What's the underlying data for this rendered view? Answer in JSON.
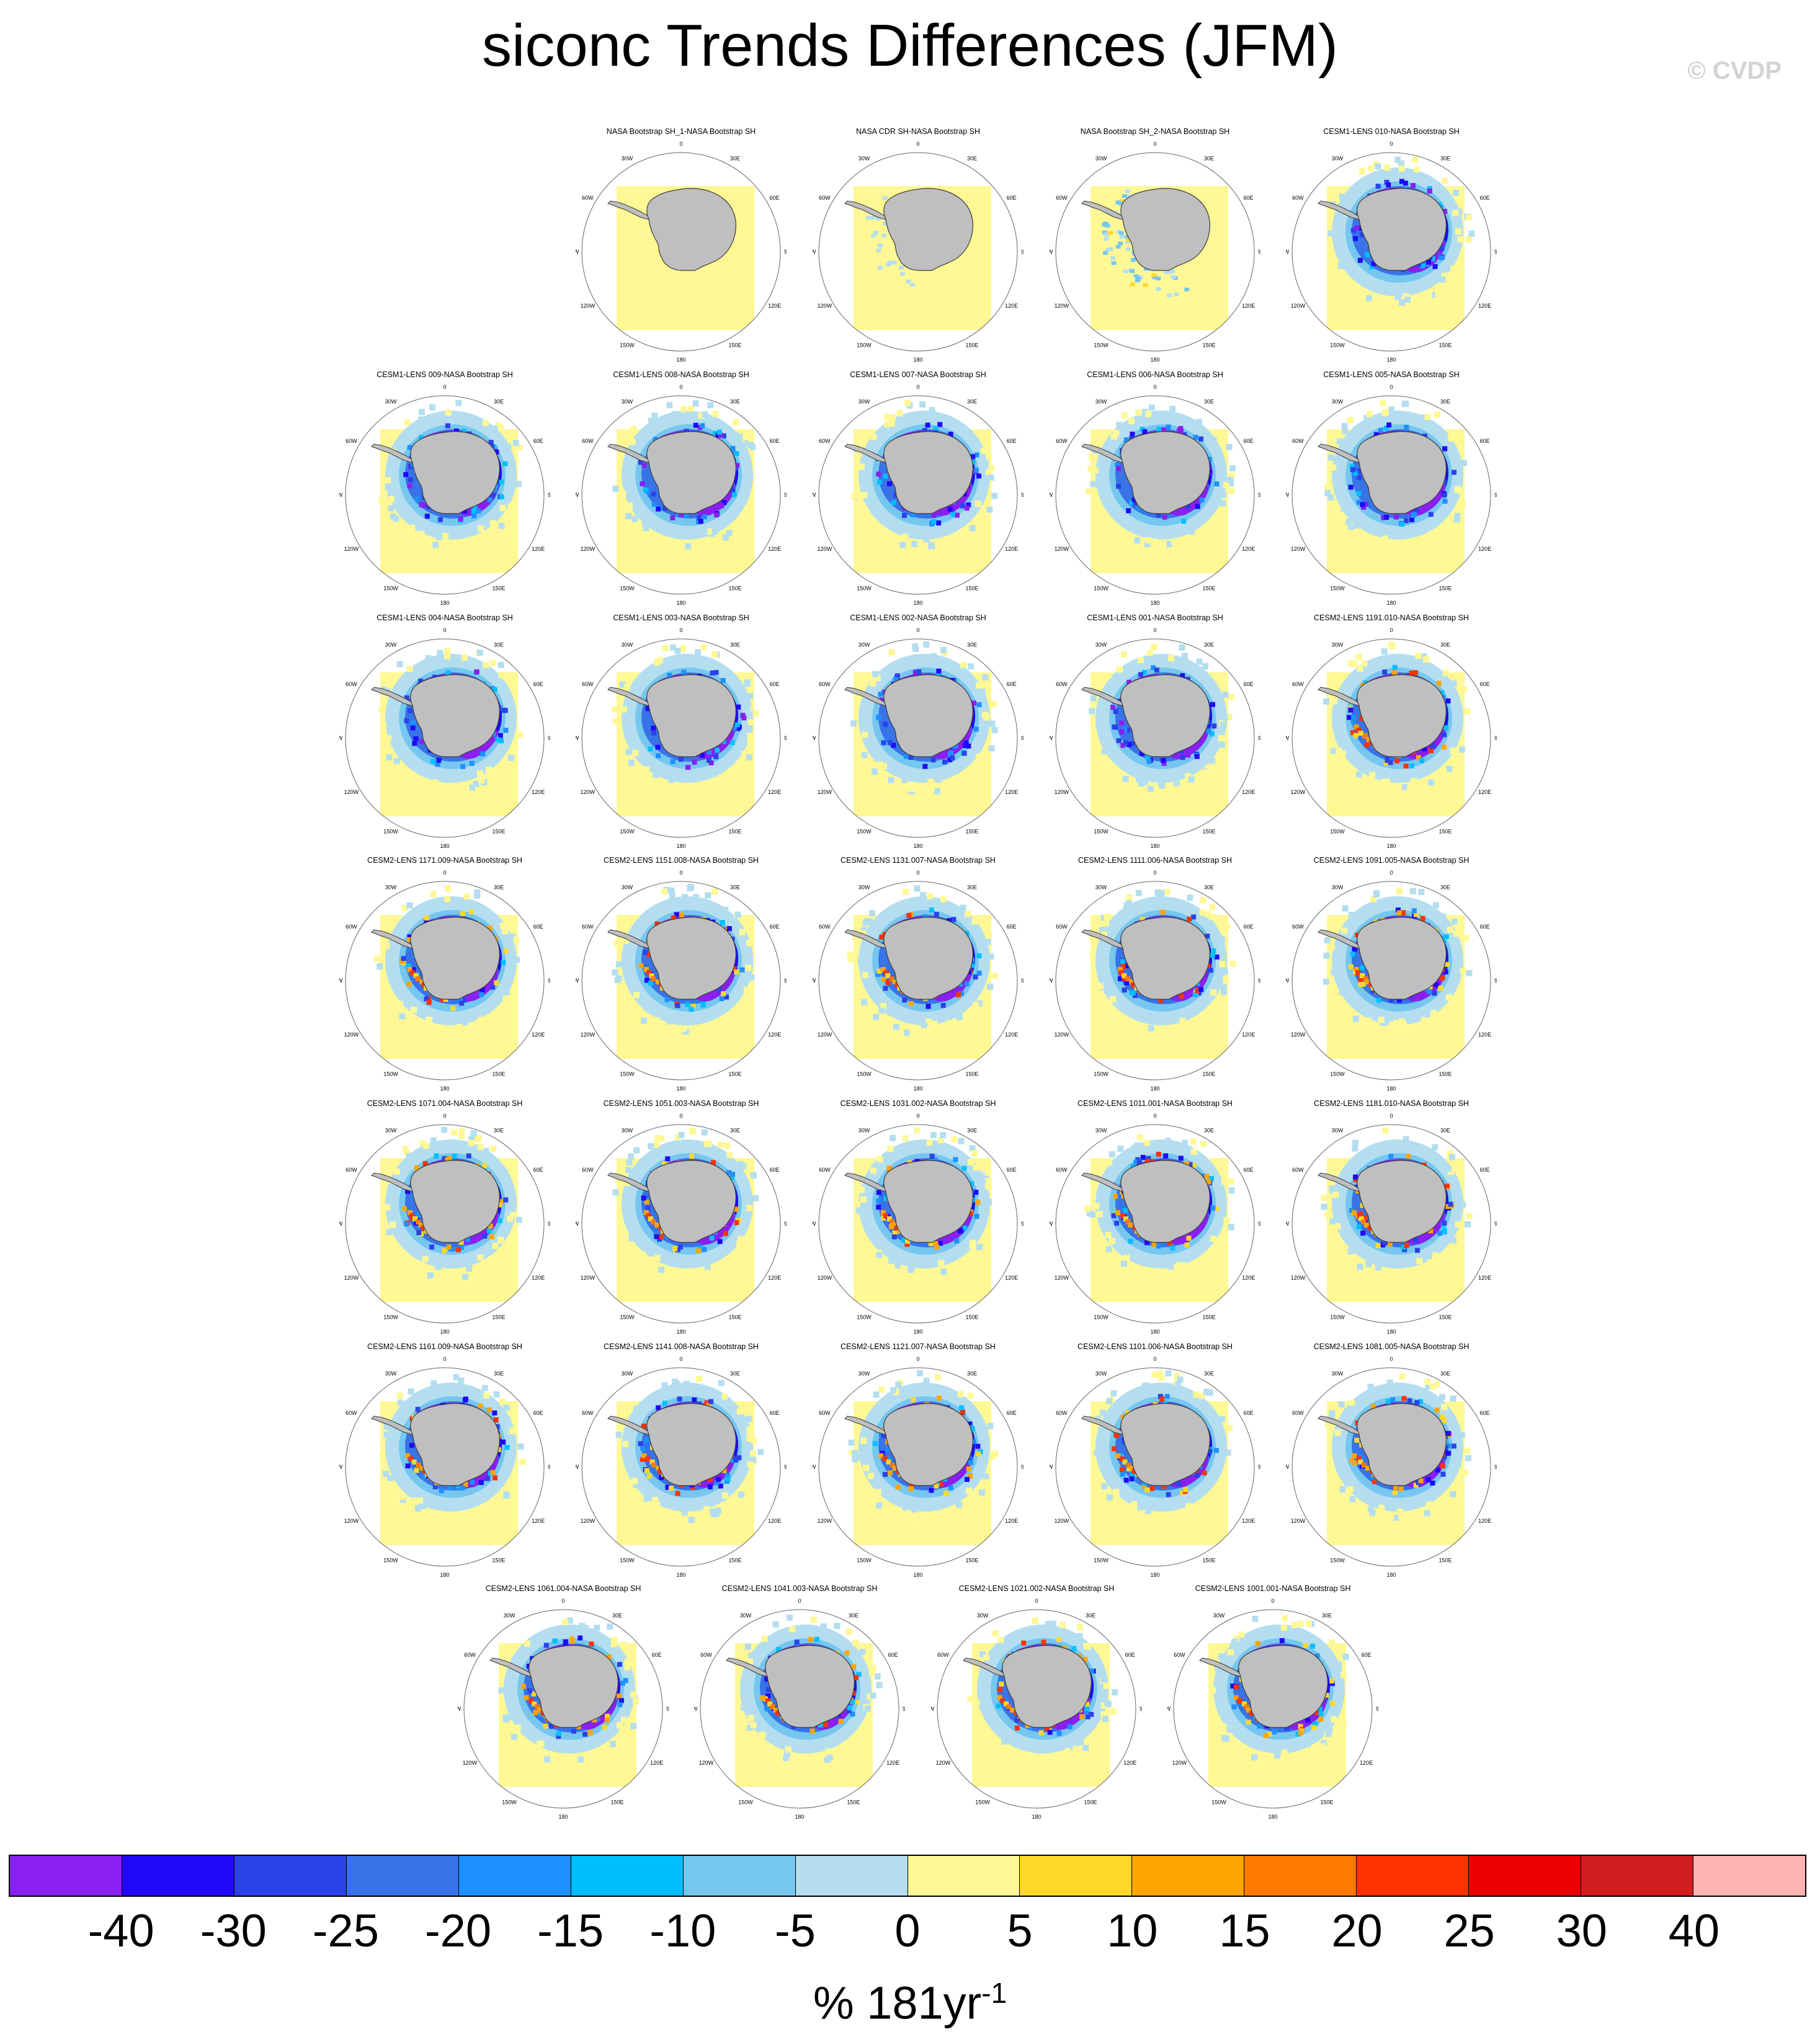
{
  "title": "siconc Trends Differences (JFM)",
  "copyright": "© CVDP",
  "panel_direction_labels": [
    "0",
    "30E",
    "60E",
    "90E",
    "120E",
    "150E",
    "180",
    "150W",
    "120W",
    "90W",
    "60W",
    "30W"
  ],
  "panels": [
    {
      "title": "NASA Bootstrap SH_1-NASA Bootstrap SH",
      "pattern": "none"
    },
    {
      "title": "NASA CDR SH-NASA Bootstrap SH",
      "pattern": "trace"
    },
    {
      "title": "NASA Bootstrap SH_2-NASA Bootstrap SH",
      "pattern": "scatter"
    },
    {
      "title": "CESM1-LENS 010-NASA Bootstrap SH",
      "pattern": "cesm1"
    },
    {
      "title": "CESM1-LENS 009-NASA Bootstrap SH",
      "pattern": "cesm1"
    },
    {
      "title": "CESM1-LENS 008-NASA Bootstrap SH",
      "pattern": "cesm1"
    },
    {
      "title": "CESM1-LENS 007-NASA Bootstrap SH",
      "pattern": "cesm1"
    },
    {
      "title": "CESM1-LENS 006-NASA Bootstrap SH",
      "pattern": "cesm1"
    },
    {
      "title": "CESM1-LENS 005-NASA Bootstrap SH",
      "pattern": "cesm1"
    },
    {
      "title": "CESM1-LENS 004-NASA Bootstrap SH",
      "pattern": "cesm1"
    },
    {
      "title": "CESM1-LENS 003-NASA Bootstrap SH",
      "pattern": "cesm1"
    },
    {
      "title": "CESM1-LENS 002-NASA Bootstrap SH",
      "pattern": "cesm1"
    },
    {
      "title": "CESM1-LENS 001-NASA Bootstrap SH",
      "pattern": "cesm1"
    },
    {
      "title": "CESM2-LENS 1191.010-NASA Bootstrap SH",
      "pattern": "cesm2"
    },
    {
      "title": "CESM2-LENS 1171.009-NASA Bootstrap SH",
      "pattern": "cesm2"
    },
    {
      "title": "CESM2-LENS 1151.008-NASA Bootstrap SH",
      "pattern": "cesm2"
    },
    {
      "title": "CESM2-LENS 1131.007-NASA Bootstrap SH",
      "pattern": "cesm2"
    },
    {
      "title": "CESM2-LENS 1111.006-NASA Bootstrap SH",
      "pattern": "cesm2"
    },
    {
      "title": "CESM2-LENS 1091.005-NASA Bootstrap SH",
      "pattern": "cesm2"
    },
    {
      "title": "CESM2-LENS 1071.004-NASA Bootstrap SH",
      "pattern": "cesm2"
    },
    {
      "title": "CESM2-LENS 1051.003-NASA Bootstrap SH",
      "pattern": "cesm2"
    },
    {
      "title": "CESM2-LENS 1031.002-NASA Bootstrap SH",
      "pattern": "cesm2"
    },
    {
      "title": "CESM2-LENS 1011.001-NASA Bootstrap SH",
      "pattern": "cesm2"
    },
    {
      "title": "CESM2-LENS 1181.010-NASA Bootstrap SH",
      "pattern": "cesm2"
    },
    {
      "title": "CESM2-LENS 1161.009-NASA Bootstrap SH",
      "pattern": "cesm2"
    },
    {
      "title": "CESM2-LENS 1141.008-NASA Bootstrap SH",
      "pattern": "cesm2"
    },
    {
      "title": "CESM2-LENS 1121.007-NASA Bootstrap SH",
      "pattern": "cesm2"
    },
    {
      "title": "CESM2-LENS 1101.006-NASA Bootstrap SH",
      "pattern": "cesm2"
    },
    {
      "title": "CESM2-LENS 1081.005-NASA Bootstrap SH",
      "pattern": "cesm2"
    },
    {
      "title": "CESM2-LENS 1061.004-NASA Bootstrap SH",
      "pattern": "cesm2"
    },
    {
      "title": "CESM2-LENS 1041.003-NASA Bootstrap SH",
      "pattern": "cesm2"
    },
    {
      "title": "CESM2-LENS 1021.002-NASA Bootstrap SH",
      "pattern": "cesm2"
    },
    {
      "title": "CESM2-LENS 1001.001-NASA Bootstrap SH",
      "pattern": "cesm2"
    }
  ],
  "colorbar": {
    "labels": [
      "-40",
      "-30",
      "-25",
      "-20",
      "-15",
      "-10",
      "-5",
      "0",
      "5",
      "10",
      "15",
      "20",
      "25",
      "30",
      "40"
    ],
    "colors": [
      "#8a1ff0",
      "#2008f8",
      "#2b42e8",
      "#3873e8",
      "#1e90ff",
      "#00bfff",
      "#76c7f0",
      "#b4def0",
      "#fff894",
      "#ffd82a",
      "#ffa500",
      "#ff7800",
      "#ff3200",
      "#eb0000",
      "#d21e1e",
      "#ffb4b4"
    ],
    "units_text": "% 181yr",
    "units_sup": "-1"
  }
}
